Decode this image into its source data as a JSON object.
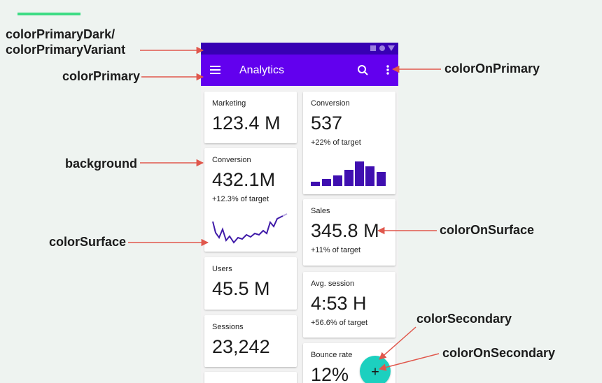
{
  "annotations": {
    "primary_dark": "colorPrimaryDark/",
    "primary_variant": "colorPrimaryVariant",
    "primary": "colorPrimary",
    "background": "background",
    "surface": "colorSurface",
    "on_primary": "colorOnPrimary",
    "on_surface": "colorOnSurface",
    "secondary": "colorSecondary",
    "on_secondary": "colorOnSecondary"
  },
  "app_bar": {
    "title": "Analytics"
  },
  "fab": {
    "icon": "+"
  },
  "cards": [
    {
      "label": "Marketing",
      "value": "123.4 M"
    },
    {
      "label": "Conversion",
      "value": "432.1M",
      "note": "+12.3% of target"
    },
    {
      "label": "Users",
      "value": "45.5 M"
    },
    {
      "label": "Sessions",
      "value": "23,242"
    },
    {
      "label": "Conversion",
      "value": "537",
      "note": "+22% of target"
    },
    {
      "label": "Sales",
      "value": "345.8 M",
      "note": "+11% of target"
    },
    {
      "label": "Avg. session",
      "value": "4:53 H",
      "note": "+56.6% of target"
    },
    {
      "label": "Bounce rate",
      "value": "12%"
    }
  ]
}
